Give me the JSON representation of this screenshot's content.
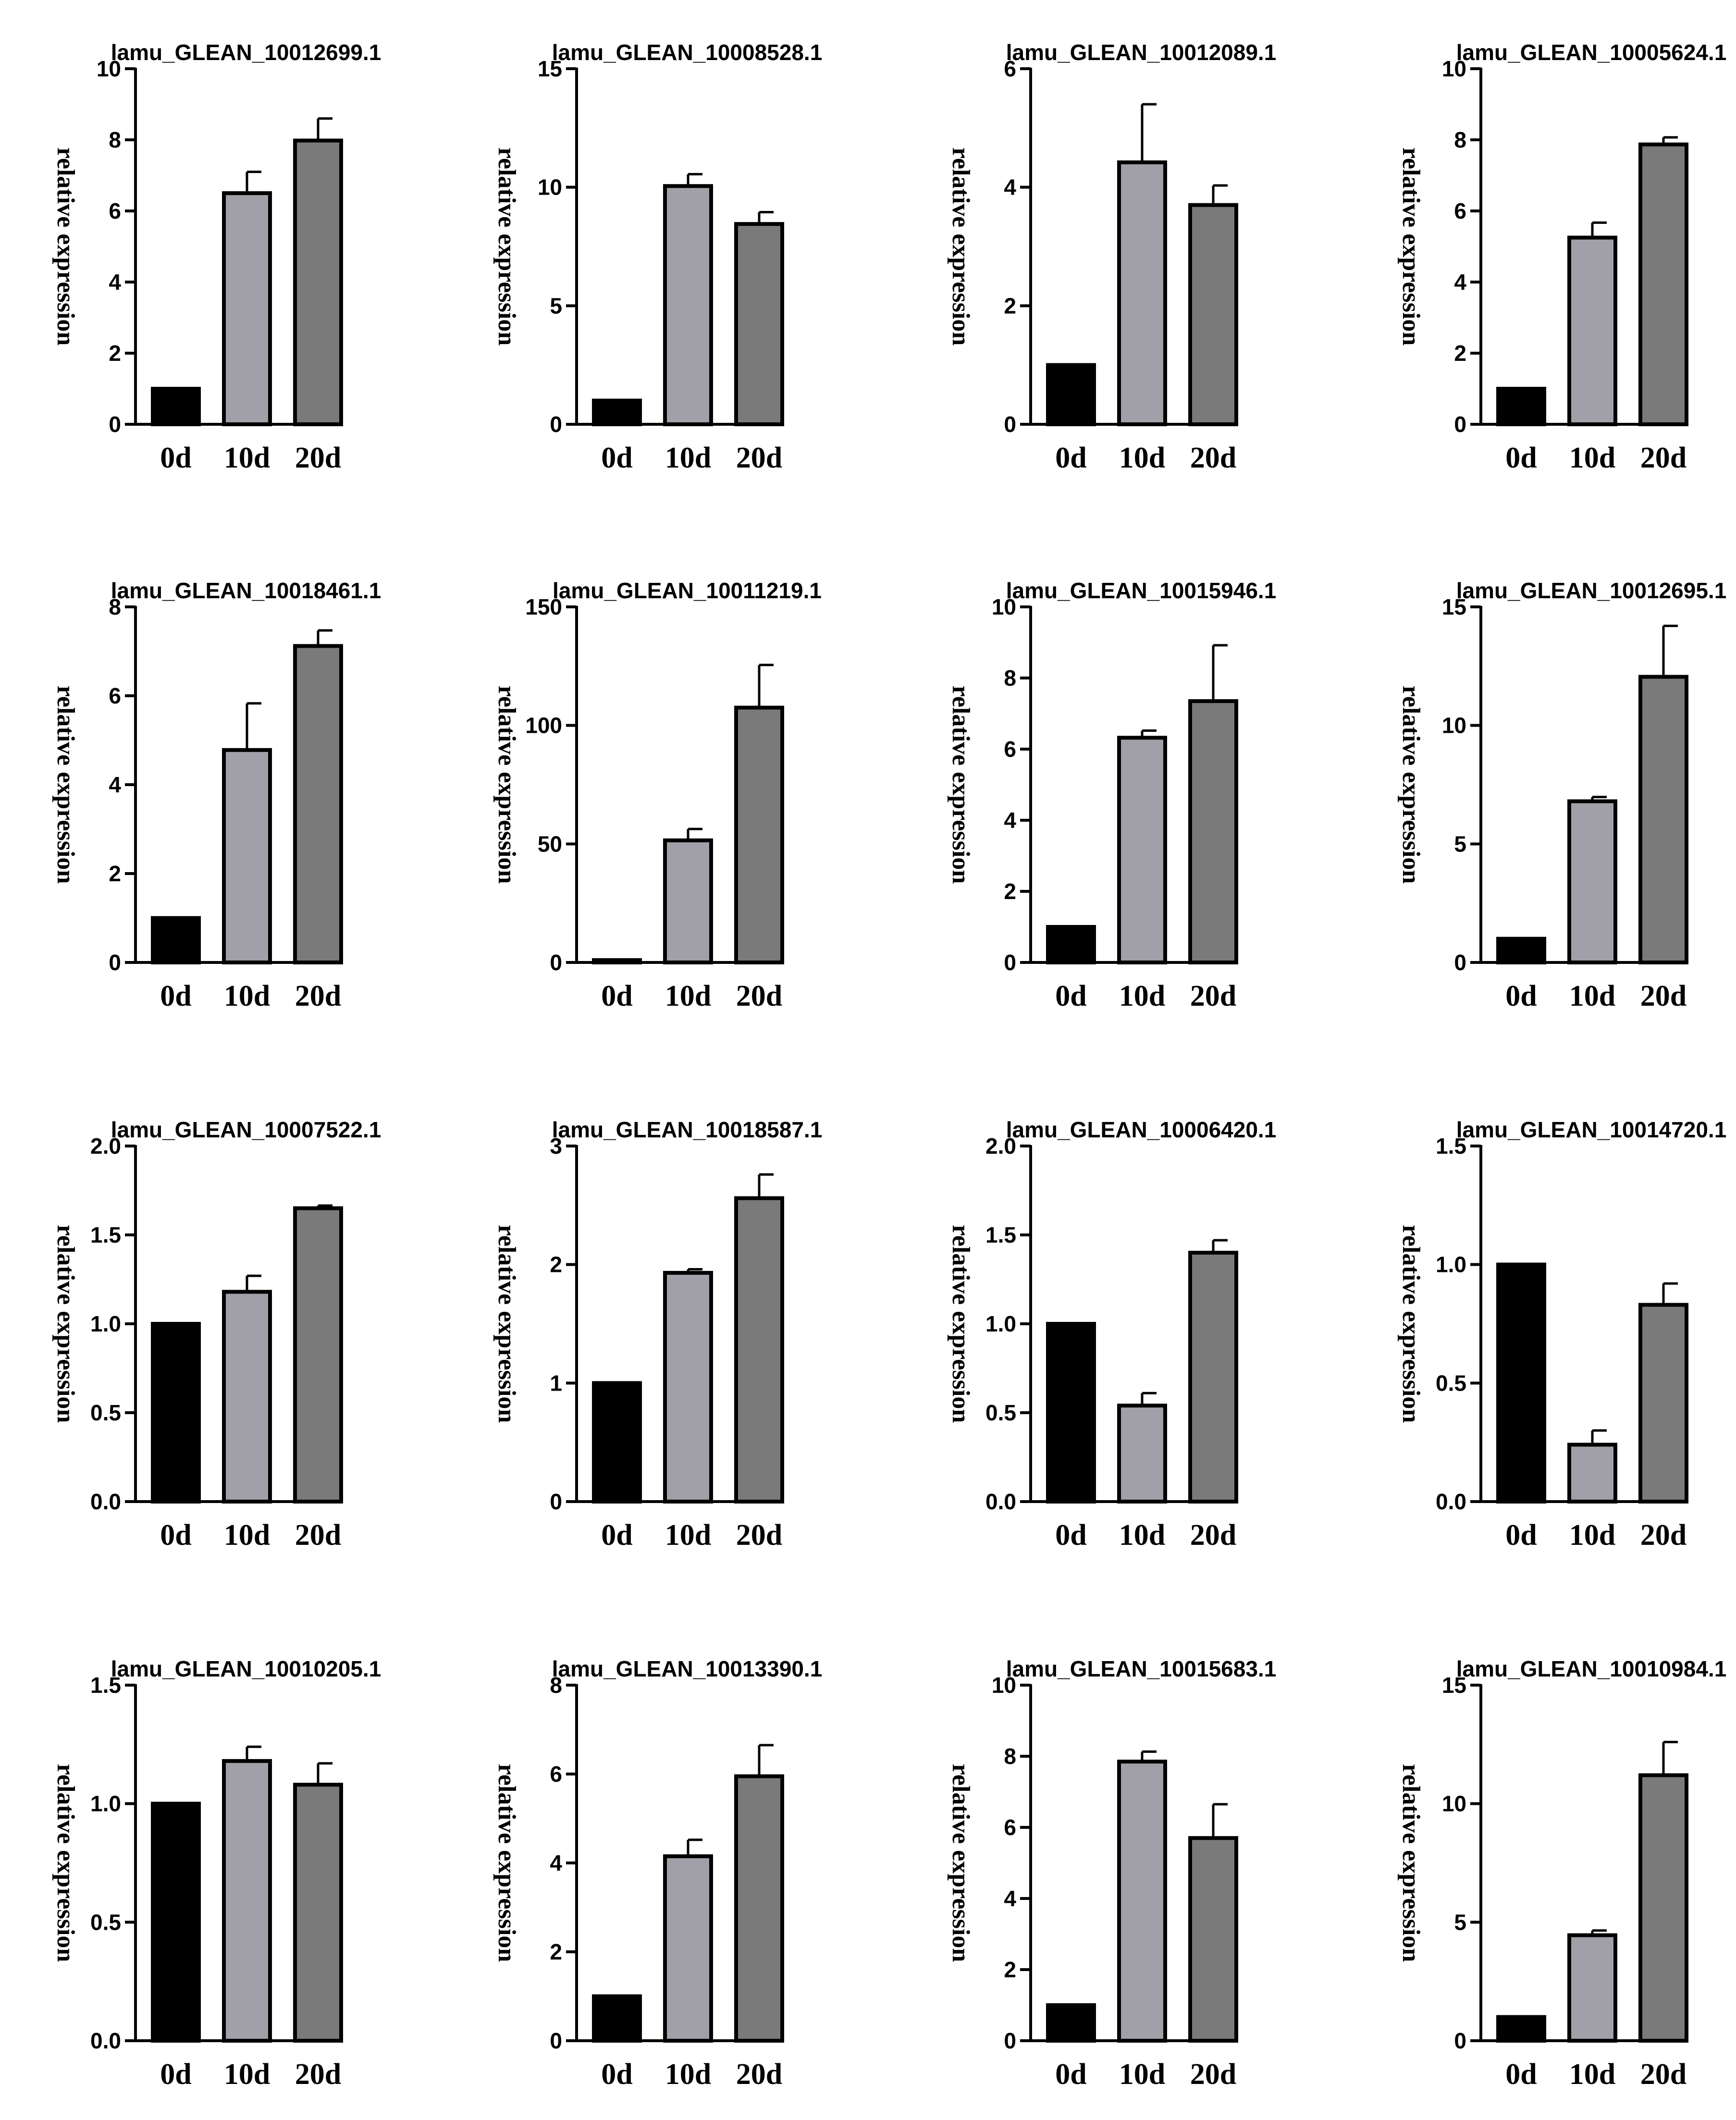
{
  "colors": {
    "0d": "#000000",
    "10d": "#a19fa7",
    "20d": "#7a7a7a",
    "axis": "#000000"
  },
  "chart_data": [
    {
      "type": "bar",
      "title": "lamu_GLEAN_10012699.1",
      "ylabel": "relative expression",
      "categories": [
        "0d",
        "10d",
        "20d"
      ],
      "values": [
        1,
        6.5,
        7.98
      ],
      "errors": [
        0,
        0.6,
        0.62
      ],
      "ylim": [
        0,
        10
      ],
      "yticks": [
        0,
        2,
        4,
        6,
        8,
        10
      ],
      "ytick_labels": [
        "0",
        "2",
        "4",
        "6",
        "8",
        "10"
      ]
    },
    {
      "type": "bar",
      "title": "lamu_GLEAN_10008528.1",
      "ylabel": "relative expression",
      "categories": [
        "0d",
        "10d",
        "20d"
      ],
      "values": [
        1,
        10.05,
        8.45
      ],
      "errors": [
        0,
        0.5,
        0.5
      ],
      "ylim": [
        0,
        15
      ],
      "yticks": [
        0,
        5,
        10,
        15
      ],
      "ytick_labels": [
        "0",
        "5",
        "10",
        "15"
      ]
    },
    {
      "type": "bar",
      "title": "lamu_GLEAN_10012089.1",
      "ylabel": "relative expression",
      "categories": [
        "0d",
        "10d",
        "20d"
      ],
      "values": [
        1,
        4.42,
        3.7
      ],
      "errors": [
        0,
        0.98,
        0.33
      ],
      "ylim": [
        0,
        6
      ],
      "yticks": [
        0,
        2,
        4,
        6
      ],
      "ytick_labels": [
        "0",
        "2",
        "4",
        "6"
      ]
    },
    {
      "type": "bar",
      "title": "lamu_GLEAN_10005624.1",
      "ylabel": "relative expression",
      "categories": [
        "0d",
        "10d",
        "20d"
      ],
      "values": [
        1,
        5.25,
        7.87
      ],
      "errors": [
        0,
        0.42,
        0.2
      ],
      "ylim": [
        0,
        10
      ],
      "yticks": [
        0,
        2,
        4,
        6,
        8,
        10
      ],
      "ytick_labels": [
        "0",
        "2",
        "4",
        "6",
        "8",
        "10"
      ]
    },
    {
      "type": "bar",
      "title": "lamu_GLEAN_10018461.1",
      "ylabel": "relative expression",
      "categories": [
        "0d",
        "10d",
        "20d"
      ],
      "values": [
        1,
        4.78,
        7.12
      ],
      "errors": [
        0,
        1.05,
        0.35
      ],
      "ylim": [
        0,
        8
      ],
      "yticks": [
        0,
        2,
        4,
        6,
        8
      ],
      "ytick_labels": [
        "0",
        "2",
        "4",
        "6",
        "8"
      ]
    },
    {
      "type": "bar",
      "title": "lamu_GLEAN_10011219.1",
      "ylabel": "relative expression",
      "categories": [
        "0d",
        "10d",
        "20d"
      ],
      "values": [
        1,
        51.5,
        107.5
      ],
      "errors": [
        0,
        4.8,
        18
      ],
      "ylim": [
        0,
        150
      ],
      "yticks": [
        0,
        50,
        100,
        150
      ],
      "ytick_labels": [
        "0",
        "50",
        "100",
        "150"
      ]
    },
    {
      "type": "bar",
      "title": "lamu_GLEAN_10015946.1",
      "ylabel": "relative expression",
      "categories": [
        "0d",
        "10d",
        "20d"
      ],
      "values": [
        1,
        6.32,
        7.35
      ],
      "errors": [
        0,
        0.2,
        1.57
      ],
      "ylim": [
        0,
        10
      ],
      "yticks": [
        0,
        2,
        4,
        6,
        8,
        10
      ],
      "ytick_labels": [
        "0",
        "2",
        "4",
        "6",
        "8",
        "10"
      ]
    },
    {
      "type": "bar",
      "title": "lamu_GLEAN_10012695.1",
      "ylabel": "relative expression",
      "categories": [
        "0d",
        "10d",
        "20d"
      ],
      "values": [
        1,
        6.8,
        12.05
      ],
      "errors": [
        0,
        0.18,
        2.15
      ],
      "ylim": [
        0,
        15
      ],
      "yticks": [
        0,
        5,
        10,
        15
      ],
      "ytick_labels": [
        "0",
        "5",
        "10",
        "15"
      ]
    },
    {
      "type": "bar",
      "title": "lamu_GLEAN_10007522.1",
      "ylabel": "relative expression",
      "categories": [
        "0d",
        "10d",
        "20d"
      ],
      "values": [
        1,
        1.18,
        1.65
      ],
      "errors": [
        0,
        0.09,
        0.015
      ],
      "ylim": [
        0,
        2
      ],
      "yticks": [
        0,
        0.5,
        1,
        1.5,
        2
      ],
      "ytick_labels": [
        "0.0",
        "0.5",
        "1.0",
        "1.5",
        "2.0"
      ]
    },
    {
      "type": "bar",
      "title": "lamu_GLEAN_10018587.1",
      "ylabel": "relative expression",
      "categories": [
        "0d",
        "10d",
        "20d"
      ],
      "values": [
        1,
        1.93,
        2.56
      ],
      "errors": [
        0,
        0.03,
        0.2
      ],
      "ylim": [
        0,
        3
      ],
      "yticks": [
        0,
        1,
        2,
        3
      ],
      "ytick_labels": [
        "0",
        "1",
        "2",
        "3"
      ]
    },
    {
      "type": "bar",
      "title": "lamu_GLEAN_10006420.1",
      "ylabel": "relative expression",
      "categories": [
        "0d",
        "10d",
        "20d"
      ],
      "values": [
        1,
        0.54,
        1.4
      ],
      "errors": [
        0,
        0.07,
        0.07
      ],
      "ylim": [
        0,
        2
      ],
      "yticks": [
        0,
        0.5,
        1,
        1.5,
        2
      ],
      "ytick_labels": [
        "0.0",
        "0.5",
        "1.0",
        "1.5",
        "2.0"
      ]
    },
    {
      "type": "bar",
      "title": "lamu_GLEAN_10014720.1",
      "ylabel": "relative expression",
      "categories": [
        "0d",
        "10d",
        "20d"
      ],
      "values": [
        1,
        0.24,
        0.83
      ],
      "errors": [
        0,
        0.06,
        0.09
      ],
      "ylim": [
        0,
        1.5
      ],
      "yticks": [
        0,
        0.5,
        1,
        1.5
      ],
      "ytick_labels": [
        "0.0",
        "0.5",
        "1.0",
        "1.5"
      ]
    },
    {
      "type": "bar",
      "title": "lamu_GLEAN_10010205.1",
      "ylabel": "relative expression",
      "categories": [
        "0d",
        "10d",
        "20d"
      ],
      "values": [
        1,
        1.18,
        1.08
      ],
      "errors": [
        0,
        0.06,
        0.09
      ],
      "ylim": [
        0,
        1.5
      ],
      "yticks": [
        0,
        0.5,
        1,
        1.5
      ],
      "ytick_labels": [
        "0.0",
        "0.5",
        "1.0",
        "1.5"
      ]
    },
    {
      "type": "bar",
      "title": "lamu_GLEAN_10013390.1",
      "ylabel": "relative expression",
      "categories": [
        "0d",
        "10d",
        "20d"
      ],
      "values": [
        1,
        4.15,
        5.95
      ],
      "errors": [
        0,
        0.37,
        0.7
      ],
      "ylim": [
        0,
        8
      ],
      "yticks": [
        0,
        2,
        4,
        6,
        8
      ],
      "ytick_labels": [
        "0",
        "2",
        "4",
        "6",
        "8"
      ]
    },
    {
      "type": "bar",
      "title": "lamu_GLEAN_10015683.1",
      "ylabel": "relative expression",
      "categories": [
        "0d",
        "10d",
        "20d"
      ],
      "values": [
        1,
        7.85,
        5.7
      ],
      "errors": [
        0,
        0.28,
        0.95
      ],
      "ylim": [
        0,
        10
      ],
      "yticks": [
        0,
        2,
        4,
        6,
        8,
        10
      ],
      "ytick_labels": [
        "0",
        "2",
        "4",
        "6",
        "8",
        "10"
      ]
    },
    {
      "type": "bar",
      "title": "lamu_GLEAN_10010984.1",
      "ylabel": "relative expression",
      "categories": [
        "0d",
        "10d",
        "20d"
      ],
      "values": [
        1,
        4.45,
        11.2
      ],
      "errors": [
        0,
        0.2,
        1.4
      ],
      "ylim": [
        0,
        15
      ],
      "yticks": [
        0,
        5,
        10,
        15
      ],
      "ytick_labels": [
        "0",
        "5",
        "10",
        "15"
      ]
    }
  ]
}
